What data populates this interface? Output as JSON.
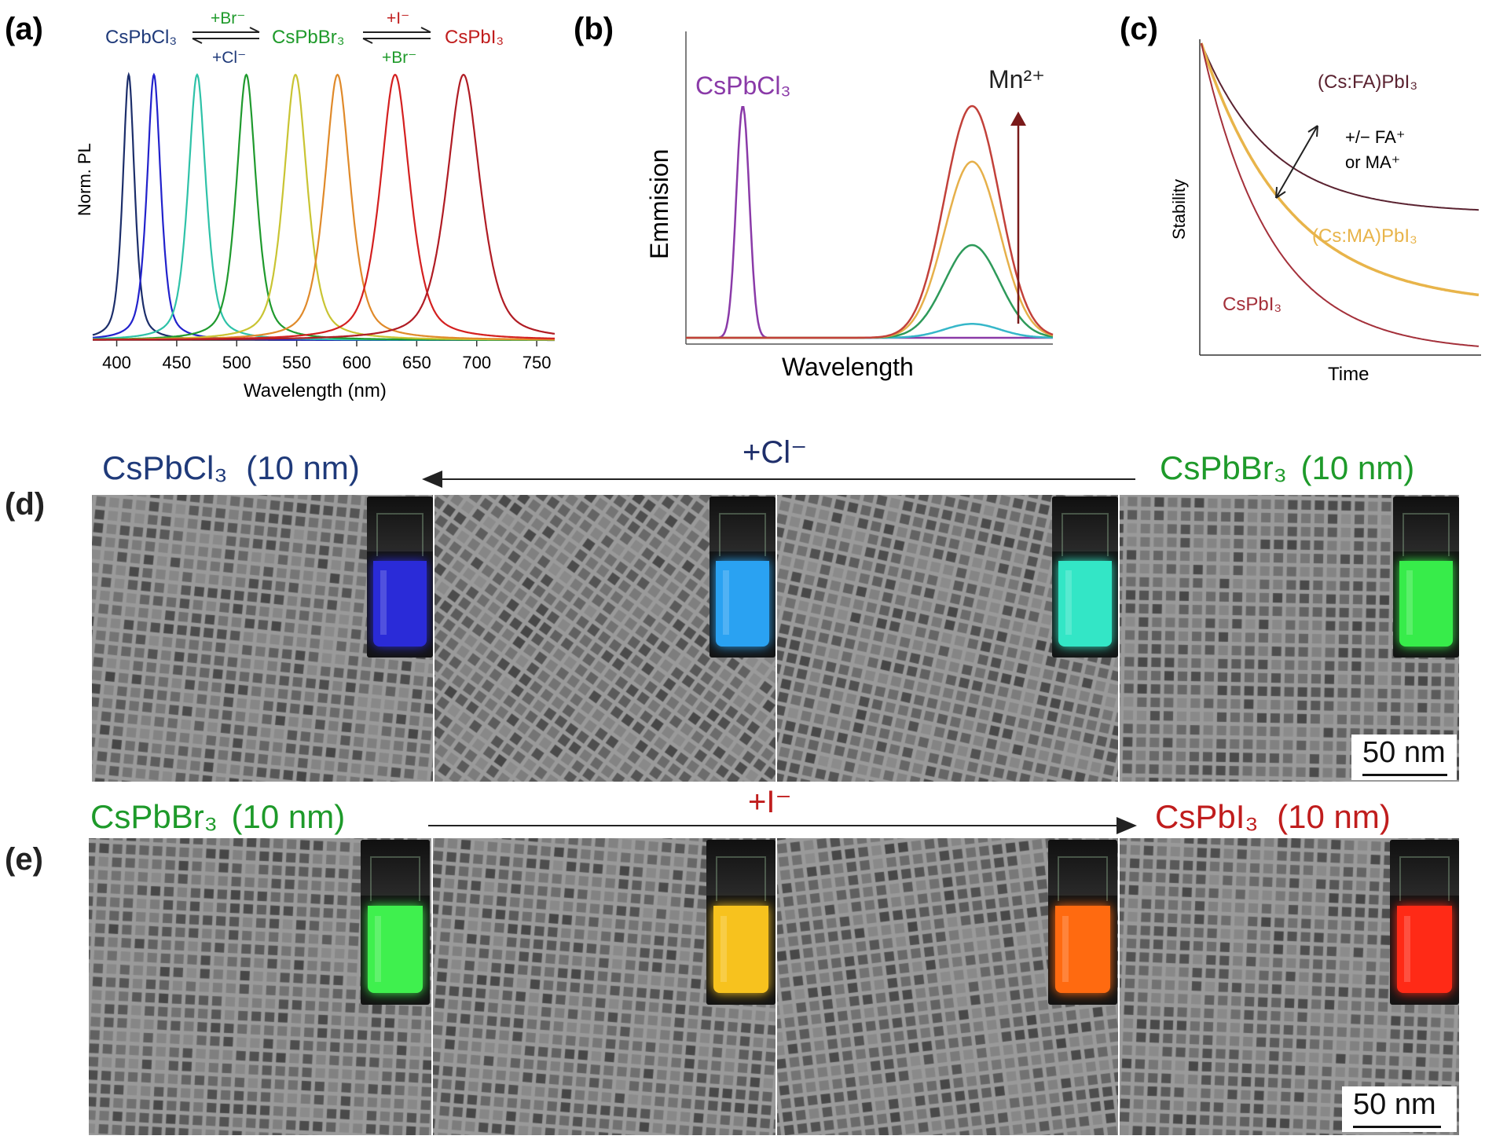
{
  "chart_data": [
    {
      "type": "line",
      "panel": "(a)",
      "title": "",
      "xlabel": "Wavelength (nm)",
      "ylabel": "Norm. PL",
      "xlim": [
        380,
        765
      ],
      "ylim": [
        0,
        1.05
      ],
      "x_ticks": [
        400,
        450,
        500,
        550,
        600,
        650,
        700,
        750
      ],
      "series": [
        {
          "name": "peak-410",
          "center": 410,
          "width": 6,
          "color": "#1c2e6b",
          "values": [
            0,
            1,
            0
          ]
        },
        {
          "name": "peak-431",
          "center": 431,
          "width": 7,
          "color": "#2222cc",
          "values": [
            0,
            1,
            0
          ]
        },
        {
          "name": "peak-467",
          "center": 467,
          "width": 9,
          "color": "#2ec2a8",
          "values": [
            0,
            1,
            0
          ]
        },
        {
          "name": "peak-508",
          "center": 508,
          "width": 10,
          "color": "#1f9a2e",
          "values": [
            0,
            1,
            0
          ]
        },
        {
          "name": "peak-549",
          "center": 549,
          "width": 12,
          "color": "#c9c433",
          "values": [
            0,
            1,
            0
          ]
        },
        {
          "name": "peak-584",
          "center": 584,
          "width": 13,
          "color": "#e08a2a",
          "values": [
            0,
            1,
            0
          ]
        },
        {
          "name": "peak-632",
          "center": 632,
          "width": 15,
          "color": "#d42020",
          "values": [
            0,
            1,
            0
          ]
        },
        {
          "name": "peak-689",
          "center": 689,
          "width": 17,
          "color": "#b01c24",
          "values": [
            0,
            1,
            0
          ]
        }
      ],
      "annotations": {
        "cl": "CsPbCl₃",
        "br": "CsPbBr₃",
        "i": "CsPbI₃",
        "arrow1_top": "+Br⁻",
        "arrow1_bottom": "+Cl⁻",
        "arrow2_top": "+I⁻",
        "arrow2_bottom": "+Br⁻"
      }
    },
    {
      "type": "line",
      "panel": "(b)",
      "xlabel": "Wavelength",
      "ylabel": "Emmision",
      "xlim": [
        0,
        1
      ],
      "ylim": [
        0,
        1.1
      ],
      "series": [
        {
          "name": "CsPbCl3",
          "color": "#8a3aa8",
          "peak_x": 0.155,
          "peak_y": 1.0,
          "width": 0.018
        },
        {
          "name": "Mn-low",
          "color": "#36b7c9",
          "peak_x": 0.78,
          "peak_y": 0.06,
          "width": 0.075
        },
        {
          "name": "Mn-mid",
          "color": "#2e9a5a",
          "peak_x": 0.78,
          "peak_y": 0.4,
          "width": 0.075
        },
        {
          "name": "Mn-high",
          "color": "#e6b04a",
          "peak_x": 0.78,
          "peak_y": 0.76,
          "width": 0.075
        },
        {
          "name": "Mn-max",
          "color": "#c2413a",
          "peak_x": 0.78,
          "peak_y": 1.0,
          "width": 0.075
        }
      ],
      "annotations": {
        "label": "CsPbCl₃",
        "dopant": "Mn²⁺"
      }
    },
    {
      "type": "line",
      "panel": "(c)",
      "xlabel": "Time",
      "ylabel": "Stability",
      "series": [
        {
          "name": "(Cs:FA)PbI₃",
          "color": "#5a2230",
          "decay": 0.55,
          "rate": 4.0
        },
        {
          "name": "(Cs:MA)PbI₃",
          "color": "#e8b44a",
          "decay": 0.85,
          "rate": 3.2
        },
        {
          "name": "CsPbI₃",
          "color": "#a4303a",
          "decay": 1.0,
          "rate": 4.0
        }
      ],
      "annotations": {
        "change_line1": "+/− FA⁺",
        "change_line2": "or MA⁺"
      }
    }
  ],
  "panel_labels": {
    "a": "(a)",
    "b": "(b)",
    "c": "(c)",
    "d": "(d)",
    "e": "(e)"
  },
  "row_d": {
    "left_label_formula": "CsPbCl₃",
    "left_label_size": "(10 nm)",
    "arrow_label": "+Cl⁻",
    "right_label_formula": "CsPbBr₃",
    "right_label_size": "(10 nm)",
    "scale_bar": "50 nm",
    "vial_colors": [
      "#2a2bd8",
      "#2aa2f2",
      "#33e6c6",
      "#37ec4a"
    ]
  },
  "row_e": {
    "left_label_formula": "CsPbBr₃",
    "left_label_size": "(10 nm)",
    "arrow_label": "+I⁻",
    "right_label_formula": "CsPbI₃",
    "right_label_size": "(10 nm)",
    "scale_bar": "50 nm",
    "vial_colors": [
      "#3ff04e",
      "#f7c21e",
      "#ff6a10",
      "#ff2a16"
    ]
  },
  "colors": {
    "cl_blue": "#1f3a7a",
    "br_green": "#1e9a2a",
    "i_red": "#c01d1d",
    "arrow_navy": "#1f2f6b"
  }
}
